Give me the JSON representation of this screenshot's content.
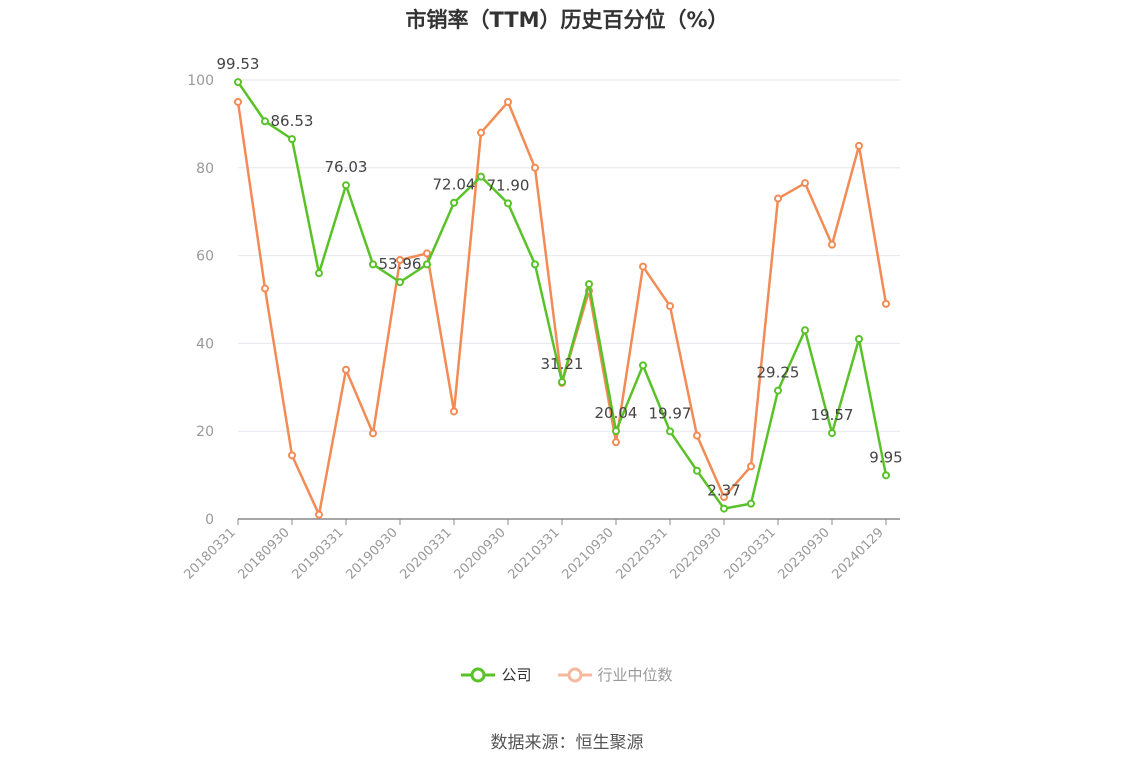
{
  "title": "市销率（TTM）历史百分位（%）",
  "source": "数据来源：恒生聚源",
  "colors": {
    "company": "#5ac229",
    "industry": "#f28b55",
    "industry_legend": "#f5b9a0",
    "grid": "#e6e6ee",
    "axis": "#999999"
  },
  "chart_data": {
    "type": "line",
    "title": "市销率（TTM）历史百分位（%）",
    "xlabel": "",
    "ylabel": "",
    "ylim": [
      0,
      100
    ],
    "yticks": [
      0,
      20,
      40,
      60,
      80,
      100
    ],
    "grid": true,
    "legend_position": "bottom",
    "x": [
      "20180331",
      "20180630",
      "20180930",
      "20181231",
      "20190331",
      "20190630",
      "20190930",
      "20191231",
      "20200331",
      "20200630",
      "20200930",
      "20201231",
      "20210331",
      "20210630",
      "20210930",
      "20211231",
      "20220331",
      "20220630",
      "20220930",
      "20221231",
      "20230331",
      "20230630",
      "20230930",
      "20231231",
      "20240129"
    ],
    "xtick_labels": [
      "20180331",
      "20180930",
      "20190331",
      "20190930",
      "20200331",
      "20200930",
      "20210331",
      "20210930",
      "20220331",
      "20220930",
      "20230331",
      "20230930",
      "20240129"
    ],
    "series": [
      {
        "name": "公司",
        "values": [
          99.53,
          90.6,
          86.53,
          56.0,
          76.03,
          58.0,
          53.96,
          58.0,
          72.04,
          78.0,
          71.9,
          58.0,
          31.21,
          53.5,
          20.04,
          35.0,
          19.97,
          11.0,
          2.37,
          3.5,
          29.25,
          43.0,
          19.57,
          41.0,
          9.95
        ],
        "labels": [
          "99.53",
          "",
          "86.53",
          "",
          "76.03",
          "",
          "53.96",
          "",
          "72.04",
          "",
          "71.90",
          "",
          "31.21",
          "",
          "20.04",
          "",
          "19.97",
          "",
          "2.37",
          "",
          "29.25",
          "",
          "19.57",
          "",
          "9.95"
        ]
      },
      {
        "name": "行业中位数",
        "values": [
          95.0,
          52.5,
          14.5,
          1.0,
          34.0,
          19.5,
          59.0,
          60.5,
          24.5,
          88.0,
          95.0,
          80.0,
          31.0,
          52.0,
          17.5,
          57.5,
          48.5,
          19.0,
          5.0,
          12.0,
          73.0,
          76.5,
          62.5,
          85.0,
          49.0
        ]
      }
    ]
  }
}
